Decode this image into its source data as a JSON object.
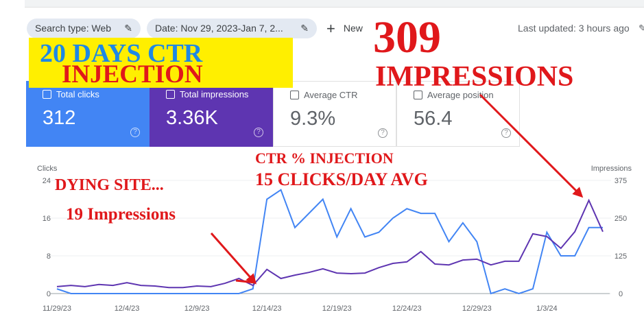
{
  "filters": [
    "Search type: Web",
    "Date: Nov 29, 2023-Jan 7, 2..."
  ],
  "new_button": "New",
  "last_updated": "Last updated: 3 hours ago",
  "cards": [
    {
      "label": "Total clicks",
      "value": "312"
    },
    {
      "label": "Total impressions",
      "value": "3.36K"
    },
    {
      "label": "Average CTR",
      "value": "9.3%"
    },
    {
      "label": "Average position",
      "value": "56.4"
    }
  ],
  "annotations": {
    "box_line1": "20 DAYS CTR",
    "box_line2": "INJECTION",
    "peak_number": "309",
    "peak_label": "IMPRESSIONS",
    "ctr_title": "CTR % INJECTION",
    "ctr_avg": "15 CLICKS/DAY AVG",
    "dying": "DYING SITE...",
    "dying_impressions": "19 Impressions"
  },
  "chart_data": {
    "type": "line",
    "y_label": "Clicks",
    "y2_label": "Impressions",
    "categories": [
      "11/29/23",
      null,
      null,
      null,
      null,
      "12/4/23",
      null,
      null,
      null,
      null,
      "12/9/23",
      null,
      null,
      null,
      null,
      "12/14/23",
      null,
      null,
      null,
      null,
      "12/19/23",
      null,
      null,
      null,
      null,
      "12/24/23",
      null,
      null,
      null,
      null,
      "12/29/23",
      null,
      null,
      null,
      null,
      "1/3/24",
      null,
      null,
      null,
      null
    ],
    "series": [
      {
        "name": "Clicks",
        "color": "#4285f4",
        "values": [
          1,
          0,
          0,
          0,
          0,
          0,
          0,
          0,
          0,
          0,
          0,
          0,
          0,
          0,
          1,
          20,
          22,
          14,
          17,
          20,
          12,
          18,
          12,
          13,
          16,
          18,
          17,
          17,
          11,
          15,
          11,
          0,
          1,
          0,
          1,
          13,
          8,
          8,
          14,
          14
        ]
      },
      {
        "name": "Impressions",
        "color": "#5e35b1",
        "axis": "y2",
        "values": [
          23,
          27,
          23,
          30,
          27,
          36,
          27,
          25,
          20,
          20,
          25,
          23,
          34,
          50,
          27,
          80,
          50,
          61,
          70,
          82,
          68,
          66,
          68,
          86,
          100,
          105,
          139,
          98,
          95,
          111,
          114,
          95,
          107,
          107,
          198,
          189,
          150,
          205,
          309,
          205
        ]
      }
    ],
    "ylim": [
      0,
      24
    ],
    "yticks": [
      0,
      8,
      16,
      24
    ],
    "y2lim": [
      0,
      375
    ],
    "y2ticks": [
      0,
      125,
      250,
      375
    ],
    "grid": true
  }
}
